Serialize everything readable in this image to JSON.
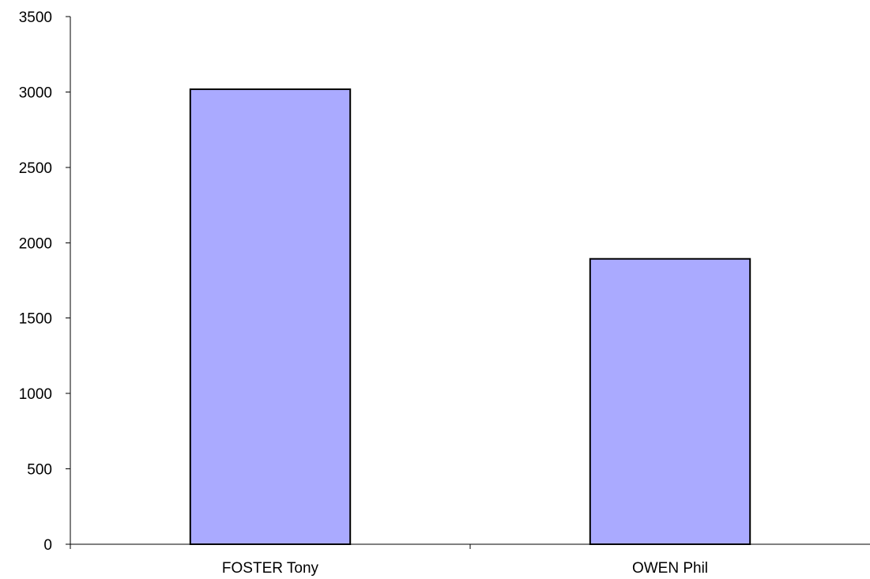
{
  "chart_data": {
    "type": "bar",
    "title": "",
    "xlabel": "",
    "ylabel": "",
    "categories": [
      "FOSTER Tony",
      "OWEN Phil"
    ],
    "series": [
      {
        "values": [
          3018,
          1893
        ]
      }
    ],
    "ylim": [
      0,
      3500
    ],
    "yticks": [
      0,
      500,
      1000,
      1500,
      2000,
      2500,
      3000,
      3500
    ],
    "grid": false,
    "legend": "none",
    "colors": {
      "bar_fill": "#aaaaff",
      "bar_stroke": "#000000",
      "axis": "#000000",
      "background": "#ffffff"
    }
  }
}
